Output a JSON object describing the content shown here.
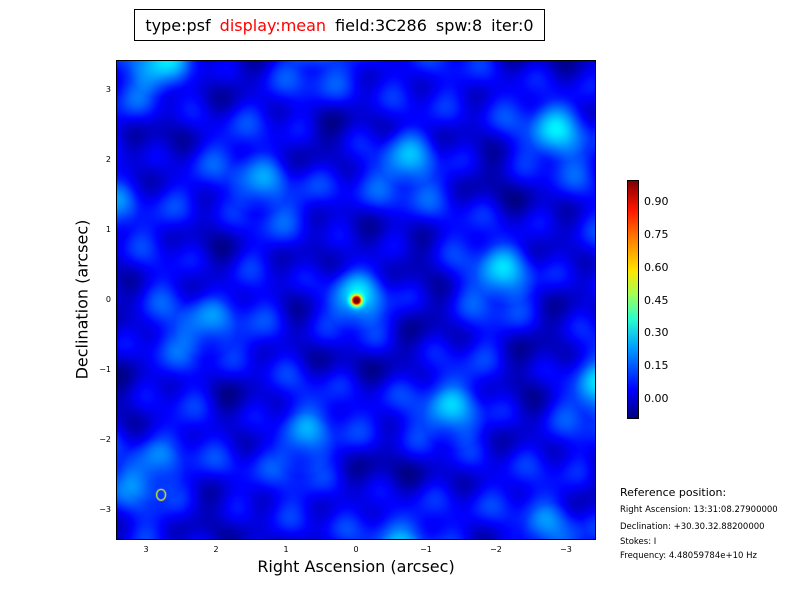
{
  "header": {
    "type": "type:psf",
    "display": "display:mean",
    "field": "field:3C286",
    "spw": "spw:8",
    "iter": "iter:0",
    "display_color": "#ff0000"
  },
  "chart_data": {
    "type": "heatmap",
    "xlabel": "Right Ascension (arcsec)",
    "ylabel": "Declination (arcsec)",
    "xlim": [
      3.43,
      -3.43
    ],
    "ylim": [
      -3.43,
      3.43
    ],
    "xticks": [
      "3",
      "2",
      "1",
      "0",
      "−1",
      "−2",
      "−3"
    ],
    "yticks": [
      "3",
      "2",
      "1",
      "0",
      "−1",
      "−2",
      "−3"
    ],
    "colormap": "jet",
    "color_range": [
      -0.09,
      1.0
    ],
    "colorbar_ticks": [
      "0.90",
      "0.75",
      "0.60",
      "0.45",
      "0.30",
      "0.15",
      "0.00"
    ],
    "peak": {
      "x": 0,
      "y": 0,
      "value": 1.0
    },
    "beam_marker": {
      "x": 2.8,
      "y": -2.77,
      "color": "#ffff00"
    },
    "grid": false
  },
  "reference": {
    "heading": "Reference position:",
    "ra": "Right Ascension: 13:31:08.27900000",
    "dec": "Declination: +30.30.32.88200000",
    "stokes": "Stokes: I",
    "frequency": "Frequency: 4.48059784e+10 Hz"
  }
}
